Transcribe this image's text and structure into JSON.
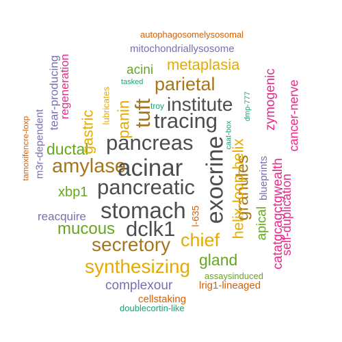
{
  "words": [
    {
      "text": "autophagosomelysosomal",
      "color": "#d95f02"
    },
    {
      "text": "mitochondriallysosome",
      "color": "#7570b3"
    },
    {
      "text": "metaplasia",
      "color": "#e6ab02"
    },
    {
      "text": "acini",
      "color": "#66a61e"
    },
    {
      "text": "tasked",
      "color": "#1b9e77"
    },
    {
      "text": "parietal",
      "color": "#a6761d"
    },
    {
      "text": "institute",
      "color": "#4d4d4d"
    },
    {
      "text": "tracing",
      "color": "#4d4d4d"
    },
    {
      "text": "pancreas",
      "color": "#4d4d4d"
    },
    {
      "text": "troy",
      "color": "#1b9e77"
    },
    {
      "text": "amylase",
      "color": "#a6761d"
    },
    {
      "text": "acinar",
      "color": "#4d4d4d"
    },
    {
      "text": "pancreatic",
      "color": "#4d4d4d"
    },
    {
      "text": "stomach",
      "color": "#4d4d4d"
    },
    {
      "text": "dclk1",
      "color": "#4d4d4d"
    },
    {
      "text": "secretory",
      "color": "#a6761d"
    },
    {
      "text": "synthesizing",
      "color": "#e6ab02"
    },
    {
      "text": "chief",
      "color": "#e6ab02"
    },
    {
      "text": "gland",
      "color": "#66a61e"
    },
    {
      "text": "ductal",
      "color": "#66a61e"
    },
    {
      "text": "xbp1",
      "color": "#66a61e"
    },
    {
      "text": "reacquire",
      "color": "#7570b3"
    },
    {
      "text": "mucous",
      "color": "#66a61e"
    },
    {
      "text": "complexour",
      "color": "#7570b3"
    },
    {
      "text": "assaysinduced",
      "color": "#66a61e"
    },
    {
      "text": "lrig1-lineaged",
      "color": "#d95f02"
    },
    {
      "text": "cellstaking",
      "color": "#d95f02"
    },
    {
      "text": "doublecortin-like",
      "color": "#1b9e77"
    },
    {
      "text": "tamoxifencre-loxp",
      "color": "#d95f02"
    },
    {
      "text": "m3r-dependent",
      "color": "#7570b3"
    },
    {
      "text": "tear-producing",
      "color": "#7570b3"
    },
    {
      "text": "regeneration",
      "color": "#e7298a"
    },
    {
      "text": "gastric",
      "color": "#e6ab02"
    },
    {
      "text": "lubricates",
      "color": "#e6ab02"
    },
    {
      "text": "panin",
      "color": "#e6ab02"
    },
    {
      "text": "tuft",
      "color": "#a6761d"
    },
    {
      "text": "exocrine",
      "color": "#4d4d4d"
    },
    {
      "text": "caat-box",
      "color": "#1b9e77"
    },
    {
      "text": "dmp-777",
      "color": "#1b9e77"
    },
    {
      "text": "granules",
      "color": "#a6761d"
    },
    {
      "text": "helix-loop-helix",
      "color": "#e6ab02"
    },
    {
      "text": "l-635",
      "color": "#d95f02"
    },
    {
      "text": "blueprints",
      "color": "#7570b3"
    },
    {
      "text": "apical",
      "color": "#66a61e"
    },
    {
      "text": "zymogenic",
      "color": "#e7298a"
    },
    {
      "text": "catatgcagctgwealth",
      "color": "#e7298a"
    },
    {
      "text": "cancer-nerve",
      "color": "#e7298a"
    },
    {
      "text": "self-duplication",
      "color": "#e7298a"
    }
  ]
}
